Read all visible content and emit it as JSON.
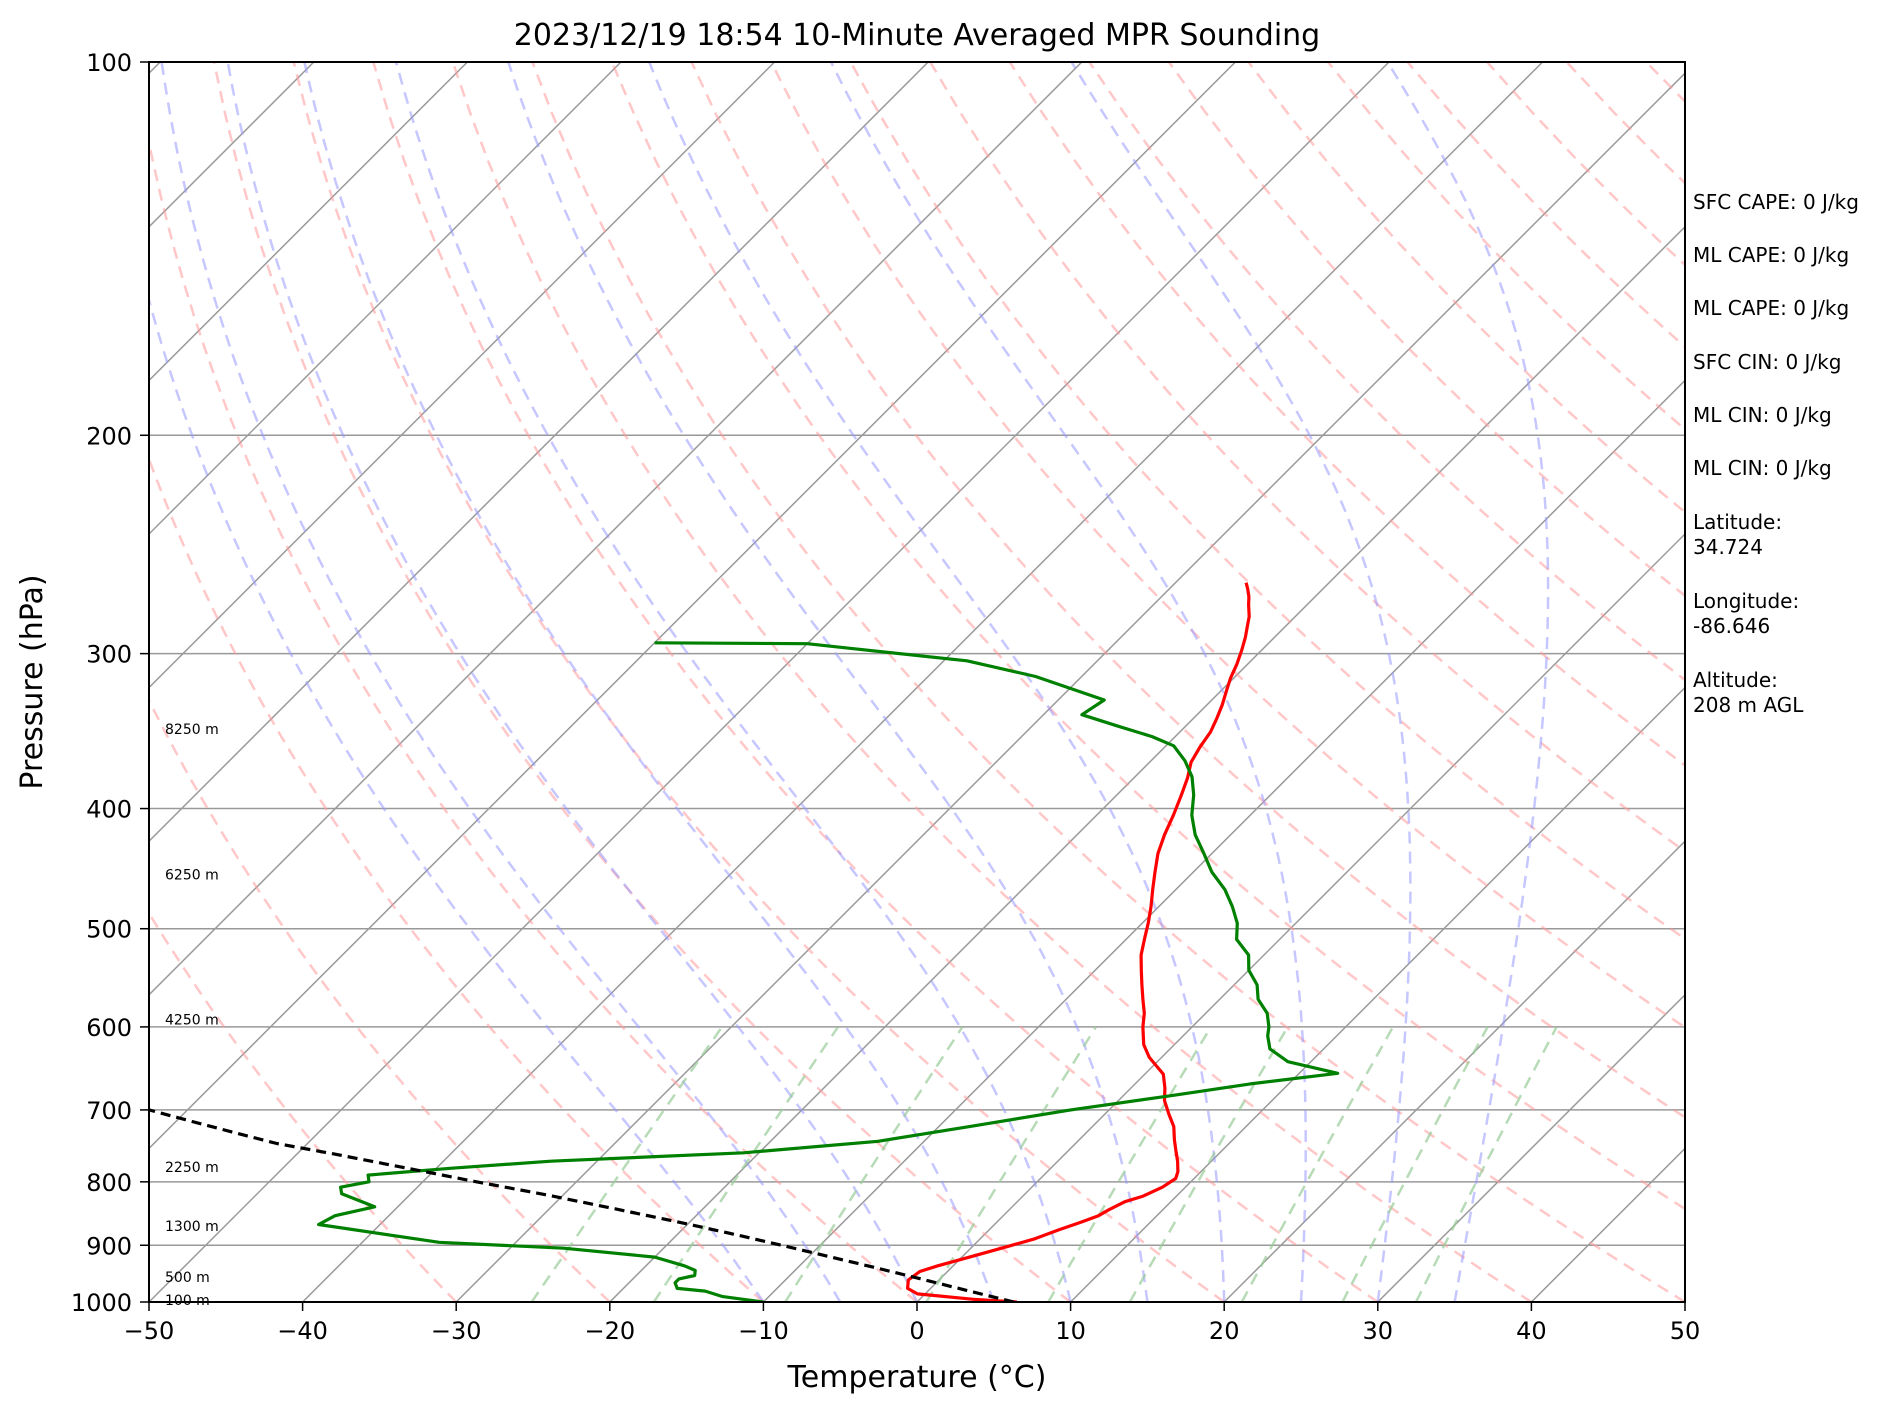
{
  "chart_data": {
    "type": "line",
    "title": "2023/12/19 18:54 10-Minute Averaged MPR Sounding",
    "xlabel": "Temperature (°C)",
    "ylabel": "Pressure (hPa)",
    "xlim": [
      -50,
      50
    ],
    "ylim": [
      1000,
      100
    ],
    "y_scale": "log",
    "skew": true,
    "grid": true,
    "x_ticks": [
      "−50",
      "−40",
      "−30",
      "−20",
      "−10",
      "0",
      "10",
      "20",
      "30",
      "40",
      "50"
    ],
    "x_tick_values": [
      -50,
      -40,
      -30,
      -20,
      -10,
      0,
      10,
      20,
      30,
      40,
      50
    ],
    "y_ticks": [
      "100",
      "200",
      "300",
      "400",
      "500",
      "600",
      "700",
      "800",
      "900",
      "1000"
    ],
    "y_tick_values": [
      100,
      200,
      300,
      400,
      500,
      600,
      700,
      800,
      900,
      1000
    ],
    "height_labels": [
      {
        "label": "8250 m",
        "pressure": 345
      },
      {
        "label": "6250 m",
        "pressure": 452
      },
      {
        "label": "4250 m",
        "pressure": 592
      },
      {
        "label": "2250 m",
        "pressure": 778
      },
      {
        "label": "1300 m",
        "pressure": 868
      },
      {
        "label": "500 m",
        "pressure": 955
      },
      {
        "label": "100 m",
        "pressure": 996
      }
    ],
    "series": [
      {
        "color": "#ff0000",
        "points": [
          [
            6.5,
            1000
          ],
          [
            3.5,
            995
          ],
          [
            -0.5,
            985
          ],
          [
            -1.5,
            975
          ],
          [
            -2.0,
            960
          ],
          [
            -1.8,
            945
          ],
          [
            -1.0,
            935
          ],
          [
            0.5,
            920
          ],
          [
            2.0,
            905
          ],
          [
            3.5,
            890
          ],
          [
            4.5,
            875
          ],
          [
            5.5,
            862
          ],
          [
            6.2,
            852
          ],
          [
            6.5,
            842
          ],
          [
            7.0,
            830
          ],
          [
            7.8,
            822
          ],
          [
            8.5,
            808
          ],
          [
            8.8,
            795
          ],
          [
            8.5,
            785
          ],
          [
            7.8,
            770
          ],
          [
            7.0,
            755
          ],
          [
            6.2,
            740
          ],
          [
            5.3,
            722
          ],
          [
            4.2,
            706
          ],
          [
            3.0,
            688
          ],
          [
            2.2,
            672
          ],
          [
            1.2,
            655
          ],
          [
            -0.8,
            635
          ],
          [
            -2.0,
            620
          ],
          [
            -3.2,
            600
          ],
          [
            -4.0,
            585
          ],
          [
            -5.0,
            570
          ],
          [
            -6.0,
            555
          ],
          [
            -7.0,
            540
          ],
          [
            -8.0,
            525
          ],
          [
            -8.8,
            510
          ],
          [
            -9.6,
            495
          ],
          [
            -10.5,
            480
          ],
          [
            -11.5,
            465
          ],
          [
            -12.5,
            450
          ],
          [
            -13.5,
            435
          ],
          [
            -14.3,
            420
          ],
          [
            -15.0,
            405
          ],
          [
            -15.8,
            390
          ],
          [
            -16.5,
            378
          ],
          [
            -17.3,
            367
          ],
          [
            -17.7,
            357
          ],
          [
            -18.0,
            347
          ],
          [
            -18.5,
            338
          ],
          [
            -19.0,
            330
          ],
          [
            -19.6,
            322
          ],
          [
            -20.2,
            314
          ],
          [
            -20.7,
            306
          ],
          [
            -21.3,
            298
          ],
          [
            -21.9,
            291
          ],
          [
            -22.5,
            285
          ],
          [
            -23.0,
            280
          ],
          [
            -23.8,
            274
          ],
          [
            -24.3,
            270
          ],
          [
            -24.9,
            266
          ],
          [
            -25.4,
            263
          ]
        ]
      },
      {
        "color": "#008000",
        "points": [
          [
            -10.0,
            1000
          ],
          [
            -13.0,
            990
          ],
          [
            -14.5,
            980
          ],
          [
            -16.5,
            975
          ],
          [
            -17.0,
            965
          ],
          [
            -17.0,
            958
          ],
          [
            -16.2,
            952
          ],
          [
            -16.5,
            943
          ],
          [
            -17.5,
            935
          ],
          [
            -20.0,
            920
          ],
          [
            -26.5,
            905
          ],
          [
            -35.0,
            895
          ],
          [
            -44.0,
            866
          ],
          [
            -43.5,
            852
          ],
          [
            -41.5,
            838
          ],
          [
            -44.5,
            818
          ],
          [
            -45.0,
            808
          ],
          [
            -43.5,
            800
          ],
          [
            -44.0,
            790
          ],
          [
            -39.0,
            780
          ],
          [
            -33.0,
            770
          ],
          [
            -21.0,
            758
          ],
          [
            -13.0,
            742
          ],
          [
            -8.0,
            722
          ],
          [
            -2.5,
            700
          ],
          [
            3.0,
            682
          ],
          [
            7.5,
            667
          ],
          [
            12.5,
            654
          ],
          [
            8.5,
            640
          ],
          [
            6.5,
            625
          ],
          [
            5.5,
            610
          ],
          [
            5.0,
            600
          ],
          [
            4.0,
            585
          ],
          [
            2.5,
            570
          ],
          [
            1.5,
            555
          ],
          [
            0.0,
            540
          ],
          [
            -1.0,
            525
          ],
          [
            -2.8,
            510
          ],
          [
            -3.8,
            495
          ],
          [
            -5.2,
            480
          ],
          [
            -6.8,
            465
          ],
          [
            -8.8,
            450
          ],
          [
            -10.5,
            435
          ],
          [
            -12.3,
            420
          ],
          [
            -13.8,
            405
          ],
          [
            -15.0,
            390
          ],
          [
            -16.3,
            377
          ],
          [
            -17.8,
            366
          ],
          [
            -19.5,
            356
          ],
          [
            -21.5,
            350
          ],
          [
            -24.5,
            343
          ],
          [
            -27.5,
            336
          ],
          [
            -27.0,
            327
          ],
          [
            -33.0,
            313
          ],
          [
            -38.5,
            304
          ],
          [
            -47.0,
            297
          ],
          [
            -50.0,
            294.5
          ],
          [
            -60.0,
            294
          ]
        ]
      },
      {
        "color": "#000000",
        "dashed": true,
        "points": [
          [
            6.3,
            1000
          ],
          [
            2.7,
            980
          ],
          [
            -0.9,
            960
          ],
          [
            -4.6,
            940
          ],
          [
            -8.5,
            920
          ],
          [
            -12.5,
            900
          ],
          [
            -16.7,
            880
          ],
          [
            -21.2,
            860
          ],
          [
            -26.0,
            840
          ],
          [
            -31.0,
            820
          ],
          [
            -36.5,
            800
          ],
          [
            -41.9,
            780
          ],
          [
            -47.5,
            760
          ],
          [
            -52.0,
            745
          ],
          [
            -55.5,
            730
          ],
          [
            -59.0,
            715
          ],
          [
            -62.5,
            700
          ],
          [
            -66.0,
            685
          ],
          [
            -69.5,
            670
          ],
          [
            -73.0,
            655
          ],
          [
            -76.5,
            640
          ],
          [
            -80.0,
            625
          ],
          [
            -83.5,
            610
          ],
          [
            -87.0,
            595
          ],
          [
            -90.6,
            580
          ],
          [
            -94.3,
            565
          ],
          [
            -98.0,
            550
          ],
          [
            -101.8,
            535
          ],
          [
            -105.6,
            520
          ],
          [
            -109.5,
            505
          ],
          [
            -113.4,
            490
          ],
          [
            -117.4,
            475
          ],
          [
            -121.5,
            460
          ],
          [
            -125.7,
            445
          ],
          [
            -130.0,
            430
          ],
          [
            -134.4,
            415
          ],
          [
            -138.9,
            400
          ],
          [
            -143.5,
            385
          ],
          [
            -148.2,
            370
          ],
          [
            -153.0,
            355
          ],
          [
            -158.0,
            340
          ],
          [
            -163.1,
            325
          ],
          [
            -168.3,
            310
          ],
          [
            -173.7,
            295
          ],
          [
            -179.2,
            280
          ]
        ]
      }
    ]
  },
  "stats": [
    "SFC CAPE: 0 J/kg",
    "ML CAPE: 0 J/kg",
    "ML CAPE: 0 J/kg",
    "SFC CIN: 0 J/kg",
    "ML CIN: 0 J/kg",
    "ML CIN: 0 J/kg",
    "Latitude:\n34.724",
    "Longitude:\n-86.646",
    "Altitude:\n208 m AGL"
  ],
  "colors": {
    "isotherm": "#999999",
    "dry_adiabat": "#ff9999",
    "moist_adiabat": "#9999ff",
    "mixing_ratio": "#99cc99",
    "temperature": "#ff0000",
    "dewpoint": "#008000",
    "parcel": "#000000"
  }
}
